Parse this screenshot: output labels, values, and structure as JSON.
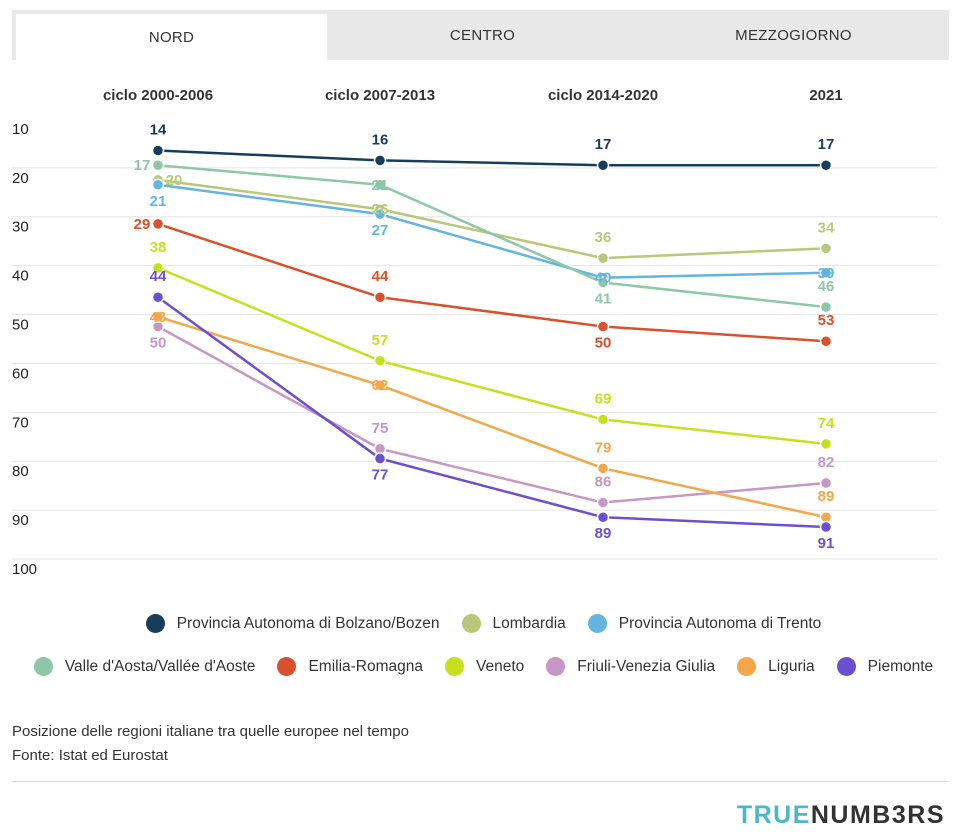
{
  "tabs": [
    {
      "label": "NORD",
      "active": true
    },
    {
      "label": "CENTRO",
      "active": false
    },
    {
      "label": "MEZZOGIORNO",
      "active": false
    }
  ],
  "caption": {
    "line1": "Posizione delle regioni italiane tra quelle europee nel tempo",
    "line2": "Fonte: Istat ed Eurostat"
  },
  "brand": {
    "part1": "TRUE",
    "part2": "NUMB3RS"
  },
  "chart_data": {
    "type": "line",
    "x_position": "top",
    "categories": [
      "ciclo 2000-2006",
      "ciclo 2007-2013",
      "ciclo 2014-2020",
      "2021"
    ],
    "y_axis": {
      "min": 10,
      "max": 100,
      "inverted": true,
      "ticks": [
        10,
        20,
        30,
        40,
        50,
        60,
        70,
        80,
        90,
        100
      ]
    },
    "grid": true,
    "data_labels": true,
    "series": [
      {
        "name": "Provincia Autonoma di Bolzano/Bozen",
        "color": "#173d5c",
        "values": [
          14,
          16,
          17,
          17
        ],
        "label_pos": [
          "above",
          "above",
          "above",
          "above"
        ]
      },
      {
        "name": "Lombardia",
        "color": "#b8c779",
        "values": [
          20,
          26,
          36,
          34
        ],
        "label_pos": [
          "right",
          "center",
          "above",
          "above"
        ]
      },
      {
        "name": "Provincia Autonoma di Trento",
        "color": "#63b5e0",
        "values": [
          21,
          27,
          40,
          39
        ],
        "label_pos": [
          "below",
          "below",
          "center",
          "center"
        ]
      },
      {
        "name": "Valle d'Aosta/Vallée d'Aoste",
        "color": "#8dc7a7",
        "values": [
          17,
          21,
          41,
          46
        ],
        "label_pos": [
          "left",
          "center",
          "below",
          "above"
        ]
      },
      {
        "name": "Emilia-Romagna",
        "color": "#d9502c",
        "values": [
          29,
          44,
          50,
          53
        ],
        "label_pos": [
          "left",
          "above",
          "below",
          "above"
        ]
      },
      {
        "name": "Veneto",
        "color": "#c5e01e",
        "values": [
          38,
          57,
          69,
          74
        ],
        "label_pos": [
          "above",
          "above",
          "above",
          "above"
        ]
      },
      {
        "name": "Friuli-Venezia Giulia",
        "color": "#c696c4",
        "values": [
          50,
          75,
          86,
          82
        ],
        "label_pos": [
          "below",
          "above",
          "above",
          "above"
        ]
      },
      {
        "name": "Liguria",
        "color": "#f3a64a",
        "values": [
          48,
          62,
          79,
          89
        ],
        "label_pos": [
          "center",
          "center",
          "above",
          "above"
        ]
      },
      {
        "name": "Piemonte",
        "color": "#6b4fd1",
        "values": [
          44,
          77,
          89,
          91
        ],
        "label_pos": [
          "above",
          "below",
          "below",
          "below"
        ]
      }
    ]
  },
  "legend_rows": [
    [
      0,
      1,
      2
    ],
    [
      3,
      4,
      5,
      6,
      7,
      8
    ]
  ]
}
